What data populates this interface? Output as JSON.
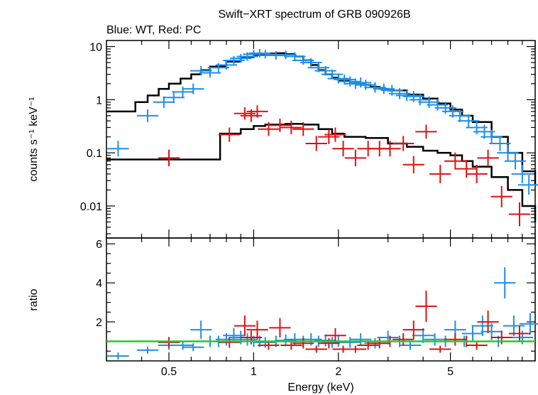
{
  "title": "Swift−XRT spectrum of GRB 090926B",
  "subtitle": "Blue: WT, Red: PC",
  "colors": {
    "wt": "#1f8fe8",
    "pc": "#e01010",
    "model": "#000000",
    "unity": "#22cc22"
  },
  "chart_data": [
    {
      "type": "scatter",
      "panel": "spectrum",
      "xlabel": "Energy (keV)",
      "ylabel": "counts s⁻¹ keV⁻¹",
      "xscale": "log",
      "yscale": "log",
      "xlim": [
        0.3,
        10
      ],
      "ylim": [
        0.0025,
        13
      ],
      "yticks": [
        0.01,
        0.1,
        1,
        10
      ],
      "ytick_labels": [
        "0.01",
        "0.1",
        "1",
        "10"
      ],
      "series": [
        {
          "name": "Blue: WT",
          "x": [
            0.33,
            0.42,
            0.48,
            0.52,
            0.56,
            0.61,
            0.65,
            0.7,
            0.75,
            0.8,
            0.85,
            0.9,
            0.95,
            1.0,
            1.05,
            1.1,
            1.2,
            1.3,
            1.4,
            1.5,
            1.6,
            1.7,
            1.8,
            1.9,
            2.0,
            2.1,
            2.2,
            2.3,
            2.4,
            2.5,
            2.7,
            2.9,
            3.1,
            3.3,
            3.5,
            3.7,
            3.9,
            4.2,
            4.5,
            4.8,
            5.1,
            5.4,
            5.8,
            6.2,
            6.6,
            7.0,
            7.5,
            8.0,
            8.5,
            9.0,
            9.5
          ],
          "y": [
            0.12,
            0.5,
            0.9,
            1.1,
            1.4,
            1.6,
            3.5,
            3.2,
            4.0,
            4.5,
            5.5,
            6.0,
            6.5,
            7.2,
            7.5,
            7.2,
            6.8,
            7.0,
            6.5,
            5.5,
            5.0,
            4.0,
            3.5,
            3.0,
            2.5,
            2.4,
            2.2,
            2.0,
            2.1,
            1.9,
            1.7,
            1.6,
            1.5,
            1.3,
            1.2,
            1.15,
            1.0,
            0.9,
            0.8,
            0.7,
            0.6,
            0.5,
            0.4,
            0.3,
            0.25,
            0.2,
            0.15,
            0.1,
            0.07,
            0.04,
            0.025
          ]
        },
        {
          "name": "Red: PC",
          "x": [
            0.5,
            0.82,
            0.93,
            0.98,
            1.03,
            1.13,
            1.24,
            1.36,
            1.5,
            1.67,
            1.85,
            1.95,
            2.08,
            2.3,
            2.55,
            2.8,
            3.05,
            3.4,
            3.7,
            4.1,
            4.6,
            5.2,
            5.7,
            6.2,
            6.8,
            7.6,
            8.8
          ],
          "y": [
            0.08,
            0.22,
            0.55,
            0.5,
            0.6,
            0.28,
            0.33,
            0.3,
            0.28,
            0.15,
            0.2,
            0.22,
            0.12,
            0.08,
            0.12,
            0.12,
            0.12,
            0.15,
            0.06,
            0.25,
            0.04,
            0.07,
            0.05,
            0.04,
            0.08,
            0.015,
            0.007
          ]
        },
        {
          "name": "WT model",
          "x": [
            0.3,
            0.38,
            0.42,
            0.46,
            0.5,
            0.55,
            0.6,
            0.65,
            0.7,
            0.8,
            0.9,
            1.0,
            1.1,
            1.2,
            1.3,
            1.4,
            1.5,
            1.6,
            1.7,
            1.8,
            1.9,
            2.0,
            2.2,
            2.4,
            2.6,
            2.8,
            3.0,
            3.5,
            4.0,
            4.5,
            5.0,
            5.5,
            6.0,
            7.0,
            8.0,
            9.0,
            10.0
          ],
          "y": [
            0.6,
            0.9,
            1.2,
            1.6,
            2.0,
            2.5,
            3.0,
            3.6,
            4.2,
            5.2,
            6.3,
            7.0,
            7.4,
            7.5,
            7.2,
            6.5,
            5.5,
            4.5,
            3.6,
            3.0,
            2.6,
            2.3,
            2.0,
            1.9,
            1.75,
            1.6,
            1.5,
            1.25,
            1.05,
            0.85,
            0.65,
            0.5,
            0.38,
            0.2,
            0.1,
            0.045,
            0.025
          ]
        },
        {
          "name": "PC model",
          "x": [
            0.3,
            0.76,
            0.9,
            1.0,
            1.1,
            1.3,
            1.5,
            1.7,
            1.9,
            2.1,
            2.5,
            3.0,
            3.5,
            4.0,
            4.5,
            5.0,
            5.5,
            6.0,
            7.0,
            8.0,
            9.0,
            10.0
          ],
          "y": [
            0.075,
            0.23,
            0.28,
            0.32,
            0.34,
            0.35,
            0.34,
            0.28,
            0.23,
            0.2,
            0.19,
            0.15,
            0.13,
            0.11,
            0.1,
            0.09,
            0.07,
            0.055,
            0.035,
            0.02,
            0.01,
            0.005
          ]
        }
      ]
    },
    {
      "type": "scatter",
      "panel": "ratio",
      "xlabel": "Energy (keV)",
      "ylabel": "ratio",
      "xscale": "log",
      "xlim": [
        0.3,
        10
      ],
      "ylim": [
        0,
        6.3
      ],
      "yticks": [
        2,
        4,
        6
      ],
      "ytick_labels": [
        "2",
        "4",
        "6"
      ],
      "xticks": [
        0.5,
        1,
        2,
        5
      ],
      "xtick_labels": [
        "0.5",
        "1",
        "2",
        "5"
      ],
      "reference_line": 1,
      "series": [
        {
          "name": "Blue: WT",
          "x": [
            0.33,
            0.42,
            0.5,
            0.56,
            0.61,
            0.65,
            0.7,
            0.75,
            0.8,
            0.85,
            0.9,
            0.95,
            1.0,
            1.05,
            1.1,
            1.2,
            1.3,
            1.4,
            1.5,
            1.6,
            1.7,
            1.8,
            1.9,
            2.0,
            2.2,
            2.4,
            2.7,
            3.0,
            3.3,
            3.6,
            4.0,
            4.4,
            4.8,
            5.2,
            5.6,
            6.0,
            6.5,
            7.0,
            7.4,
            7.8,
            8.4,
            9.0,
            9.6
          ],
          "y": [
            0.25,
            0.55,
            0.8,
            0.8,
            0.7,
            1.6,
            1.0,
            1.0,
            1.1,
            1.3,
            1.2,
            1.1,
            1.0,
            1.0,
            0.95,
            1.0,
            1.05,
            1.1,
            1.0,
            1.1,
            1.0,
            1.05,
            0.95,
            1.0,
            0.95,
            1.1,
            0.9,
            1.2,
            1.0,
            0.8,
            1.3,
            1.1,
            1.0,
            1.6,
            1.0,
            1.4,
            1.8,
            1.5,
            1.0,
            4.0,
            1.8,
            1.2,
            1.9
          ]
        },
        {
          "name": "Red: PC",
          "x": [
            0.5,
            0.82,
            0.93,
            0.98,
            1.03,
            1.13,
            1.24,
            1.36,
            1.5,
            1.67,
            1.85,
            1.95,
            2.08,
            2.3,
            2.55,
            2.8,
            3.05,
            3.4,
            3.7,
            4.1,
            4.6,
            5.2,
            5.7,
            6.2,
            6.8,
            7.6,
            8.8
          ],
          "y": [
            0.95,
            0.95,
            1.8,
            1.2,
            1.6,
            0.8,
            1.7,
            0.8,
            0.9,
            0.6,
            0.9,
            1.3,
            0.6,
            0.6,
            0.8,
            0.9,
            1.0,
            1.1,
            1.6,
            2.8,
            0.6,
            1.1,
            1.0,
            0.8,
            2.0,
            1.2,
            1.4
          ]
        }
      ]
    }
  ]
}
